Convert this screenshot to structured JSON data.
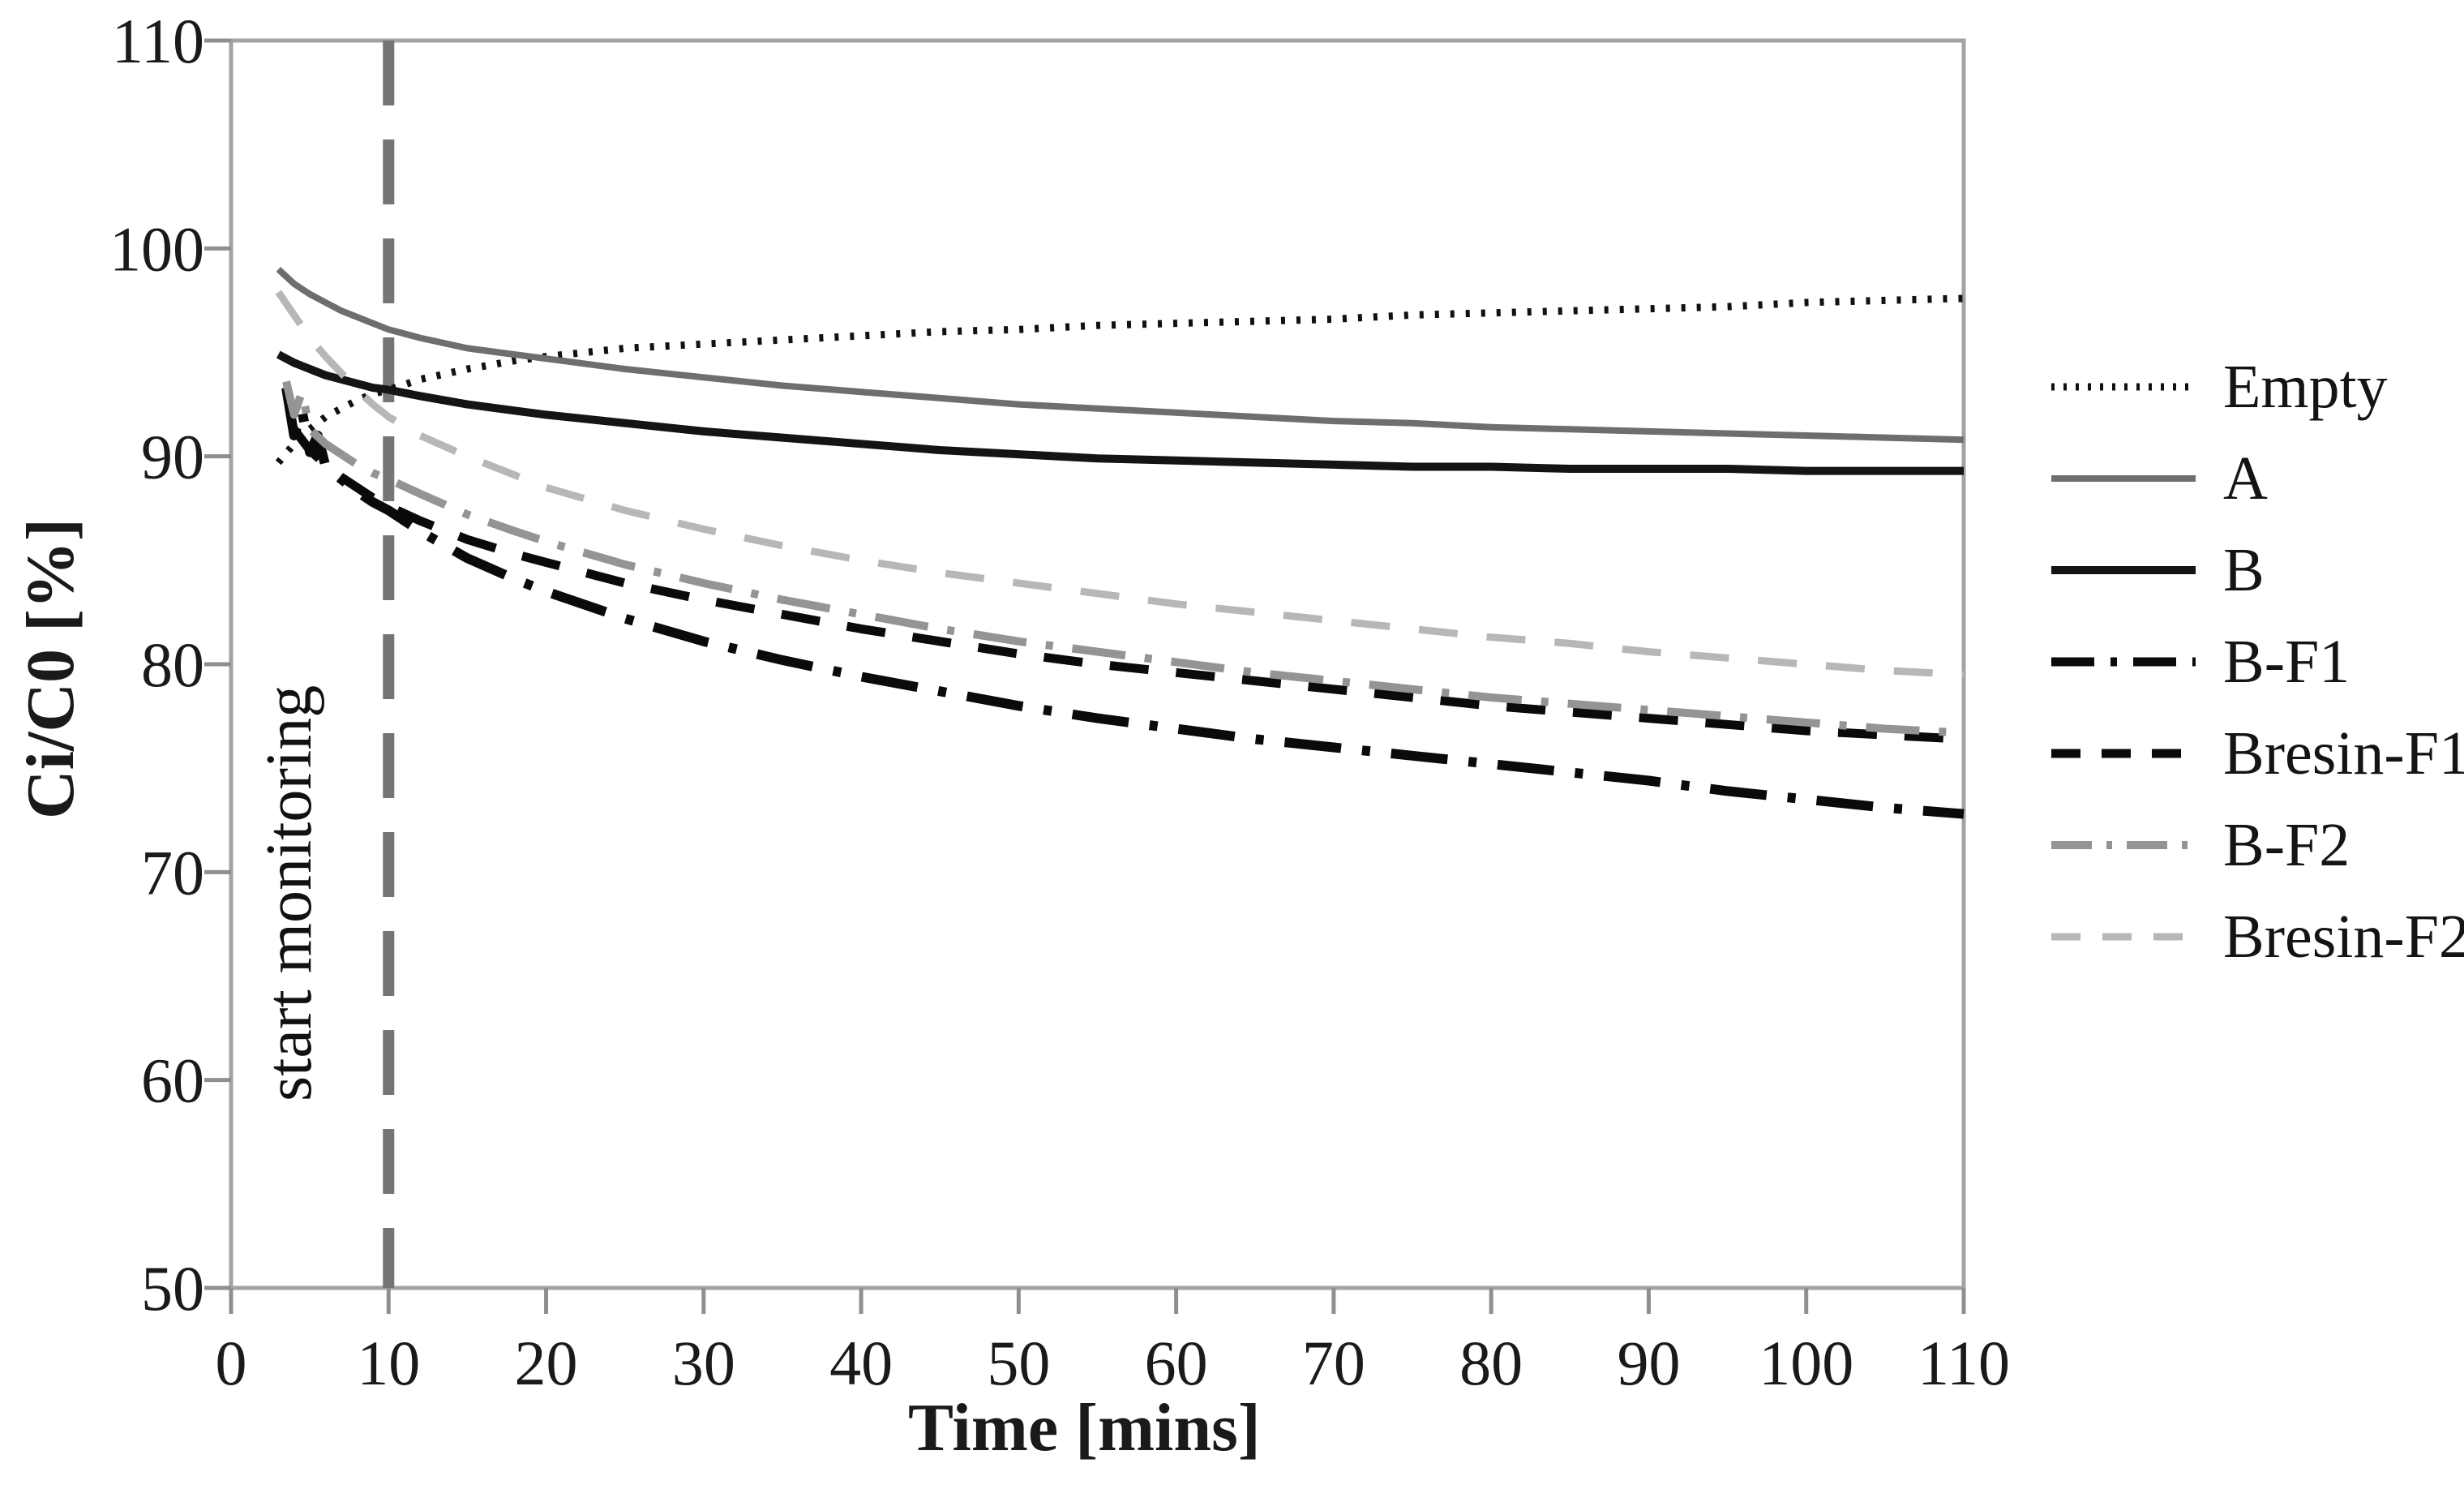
{
  "chart_data": {
    "type": "line",
    "title": "",
    "xlabel": "Time [mins]",
    "ylabel": "Ci/C0 [%]",
    "xlim": [
      0,
      110
    ],
    "ylim": [
      50,
      110
    ],
    "x_ticks": [
      0,
      10,
      20,
      30,
      40,
      50,
      60,
      70,
      80,
      90,
      100,
      110
    ],
    "y_ticks": [
      50,
      60,
      70,
      80,
      90,
      100,
      110
    ],
    "grid": false,
    "legend_position": "right",
    "axis_color": "#a3a3a3",
    "tick_color": "#8f8f8f",
    "annotation": {
      "label": "start monitoring",
      "x": 10,
      "line_color": "#757575",
      "line_style": "dashed"
    },
    "series": [
      {
        "name": "Empty",
        "color": "#111111",
        "style": "dotted",
        "width": 9,
        "dash": "5 14",
        "points": [
          [
            3,
            89.7
          ],
          [
            4,
            90.6
          ],
          [
            5,
            91.3
          ],
          [
            6,
            91.9
          ],
          [
            7,
            92.3
          ],
          [
            8,
            92.7
          ],
          [
            9,
            93.0
          ],
          [
            10,
            93.2
          ],
          [
            12,
            93.7
          ],
          [
            15,
            94.2
          ],
          [
            18,
            94.6
          ],
          [
            20,
            94.8
          ],
          [
            25,
            95.2
          ],
          [
            30,
            95.4
          ],
          [
            35,
            95.6
          ],
          [
            40,
            95.8
          ],
          [
            45,
            96.0
          ],
          [
            50,
            96.1
          ],
          [
            55,
            96.3
          ],
          [
            60,
            96.4
          ],
          [
            65,
            96.5
          ],
          [
            70,
            96.6
          ],
          [
            75,
            96.8
          ],
          [
            80,
            96.9
          ],
          [
            85,
            97.0
          ],
          [
            90,
            97.1
          ],
          [
            95,
            97.2
          ],
          [
            100,
            97.4
          ],
          [
            105,
            97.5
          ],
          [
            110,
            97.6
          ]
        ]
      },
      {
        "name": "A",
        "color": "#6e6e6e",
        "style": "solid",
        "width": 8,
        "dash": "",
        "points": [
          [
            3,
            99.0
          ],
          [
            4,
            98.3
          ],
          [
            5,
            97.8
          ],
          [
            6,
            97.4
          ],
          [
            7,
            97.0
          ],
          [
            8,
            96.7
          ],
          [
            9,
            96.4
          ],
          [
            10,
            96.1
          ],
          [
            12,
            95.7
          ],
          [
            15,
            95.2
          ],
          [
            18,
            94.9
          ],
          [
            20,
            94.7
          ],
          [
            25,
            94.2
          ],
          [
            30,
            93.8
          ],
          [
            35,
            93.4
          ],
          [
            40,
            93.1
          ],
          [
            45,
            92.8
          ],
          [
            50,
            92.5
          ],
          [
            55,
            92.3
          ],
          [
            60,
            92.1
          ],
          [
            65,
            91.9
          ],
          [
            70,
            91.7
          ],
          [
            75,
            91.6
          ],
          [
            80,
            91.4
          ],
          [
            85,
            91.3
          ],
          [
            90,
            91.2
          ],
          [
            95,
            91.1
          ],
          [
            100,
            91.0
          ],
          [
            105,
            90.9
          ],
          [
            110,
            90.8
          ]
        ]
      },
      {
        "name": "B",
        "color": "#141414",
        "style": "solid",
        "width": 10,
        "dash": "",
        "points": [
          [
            3,
            94.9
          ],
          [
            4,
            94.5
          ],
          [
            5,
            94.2
          ],
          [
            6,
            93.9
          ],
          [
            7,
            93.7
          ],
          [
            8,
            93.5
          ],
          [
            9,
            93.3
          ],
          [
            10,
            93.2
          ],
          [
            12,
            92.9
          ],
          [
            15,
            92.5
          ],
          [
            18,
            92.2
          ],
          [
            20,
            92.0
          ],
          [
            25,
            91.6
          ],
          [
            30,
            91.2
          ],
          [
            35,
            90.9
          ],
          [
            40,
            90.6
          ],
          [
            45,
            90.3
          ],
          [
            50,
            90.1
          ],
          [
            55,
            89.9
          ],
          [
            60,
            89.8
          ],
          [
            65,
            89.7
          ],
          [
            70,
            89.6
          ],
          [
            75,
            89.5
          ],
          [
            80,
            89.5
          ],
          [
            85,
            89.4
          ],
          [
            90,
            89.4
          ],
          [
            95,
            89.4
          ],
          [
            100,
            89.3
          ],
          [
            105,
            89.3
          ],
          [
            110,
            89.3
          ]
        ]
      },
      {
        "name": "B-F1",
        "color": "#0a0a0a",
        "style": "dash-dot",
        "width": 12,
        "dash": "70 26 10 26",
        "points": [
          [
            3.5,
            93.3
          ],
          [
            4,
            91.0
          ],
          [
            4.5,
            92.2
          ],
          [
            5,
            90.2
          ],
          [
            5.5,
            91.0
          ],
          [
            6,
            89.5
          ],
          [
            7,
            88.9
          ],
          [
            8,
            88.3
          ],
          [
            9,
            87.8
          ],
          [
            10,
            87.4
          ],
          [
            12,
            86.4
          ],
          [
            15,
            85.1
          ],
          [
            18,
            84.1
          ],
          [
            20,
            83.5
          ],
          [
            25,
            82.2
          ],
          [
            30,
            81.1
          ],
          [
            35,
            80.2
          ],
          [
            40,
            79.4
          ],
          [
            45,
            78.7
          ],
          [
            50,
            78.0
          ],
          [
            55,
            77.4
          ],
          [
            60,
            76.9
          ],
          [
            65,
            76.4
          ],
          [
            70,
            76.0
          ],
          [
            75,
            75.6
          ],
          [
            80,
            75.2
          ],
          [
            85,
            74.8
          ],
          [
            90,
            74.4
          ],
          [
            95,
            73.9
          ],
          [
            100,
            73.5
          ],
          [
            105,
            73.1
          ],
          [
            110,
            72.8
          ]
        ]
      },
      {
        "name": "Bresin-F1",
        "color": "#0a0a0a",
        "style": "dashed",
        "width": 11,
        "dash": "48 34",
        "points": [
          [
            4,
            91.3
          ],
          [
            5,
            90.3
          ],
          [
            6,
            89.6
          ],
          [
            7,
            89.0
          ],
          [
            8,
            88.5
          ],
          [
            9,
            88.0
          ],
          [
            10,
            87.6
          ],
          [
            12,
            86.9
          ],
          [
            15,
            86.0
          ],
          [
            18,
            85.3
          ],
          [
            20,
            84.9
          ],
          [
            25,
            83.9
          ],
          [
            30,
            83.1
          ],
          [
            35,
            82.4
          ],
          [
            40,
            81.7
          ],
          [
            45,
            81.1
          ],
          [
            50,
            80.5
          ],
          [
            55,
            80.0
          ],
          [
            60,
            79.6
          ],
          [
            65,
            79.2
          ],
          [
            70,
            78.8
          ],
          [
            75,
            78.4
          ],
          [
            80,
            78.0
          ],
          [
            85,
            77.7
          ],
          [
            90,
            77.4
          ],
          [
            95,
            77.1
          ],
          [
            100,
            76.8
          ],
          [
            105,
            76.6
          ],
          [
            110,
            76.4
          ]
        ]
      },
      {
        "name": "B-F2",
        "color": "#949494",
        "style": "dash-dot",
        "width": 10,
        "dash": "66 24 9 24",
        "points": [
          [
            3.5,
            93.6
          ],
          [
            4,
            92.0
          ],
          [
            4.5,
            93.1
          ],
          [
            5,
            91.3
          ],
          [
            6,
            90.6
          ],
          [
            7,
            90.1
          ],
          [
            8,
            89.6
          ],
          [
            9,
            89.2
          ],
          [
            10,
            88.9
          ],
          [
            12,
            88.2
          ],
          [
            15,
            87.2
          ],
          [
            18,
            86.4
          ],
          [
            20,
            85.9
          ],
          [
            25,
            84.8
          ],
          [
            30,
            83.9
          ],
          [
            35,
            83.1
          ],
          [
            40,
            82.4
          ],
          [
            45,
            81.7
          ],
          [
            50,
            81.1
          ],
          [
            55,
            80.6
          ],
          [
            60,
            80.1
          ],
          [
            65,
            79.6
          ],
          [
            70,
            79.2
          ],
          [
            75,
            78.8
          ],
          [
            80,
            78.4
          ],
          [
            85,
            78.1
          ],
          [
            90,
            77.8
          ],
          [
            95,
            77.5
          ],
          [
            100,
            77.2
          ],
          [
            105,
            76.9
          ],
          [
            110,
            76.7
          ]
        ]
      },
      {
        "name": "Bresin-F2",
        "color": "#b7b7b7",
        "style": "dashed",
        "width": 9,
        "dash": "48 36",
        "points": [
          [
            3,
            97.9
          ],
          [
            4,
            96.8
          ],
          [
            5,
            95.7
          ],
          [
            6,
            94.8
          ],
          [
            7,
            94.0
          ],
          [
            8,
            93.2
          ],
          [
            9,
            92.5
          ],
          [
            10,
            91.9
          ],
          [
            12,
            91.0
          ],
          [
            15,
            90.0
          ],
          [
            18,
            89.1
          ],
          [
            20,
            88.5
          ],
          [
            25,
            87.4
          ],
          [
            30,
            86.5
          ],
          [
            35,
            85.7
          ],
          [
            40,
            85.0
          ],
          [
            45,
            84.4
          ],
          [
            50,
            83.9
          ],
          [
            55,
            83.4
          ],
          [
            60,
            82.9
          ],
          [
            65,
            82.5
          ],
          [
            70,
            82.1
          ],
          [
            75,
            81.7
          ],
          [
            80,
            81.3
          ],
          [
            85,
            81.0
          ],
          [
            90,
            80.6
          ],
          [
            95,
            80.3
          ],
          [
            100,
            80.0
          ],
          [
            105,
            79.7
          ],
          [
            110,
            79.5
          ]
        ]
      }
    ]
  }
}
